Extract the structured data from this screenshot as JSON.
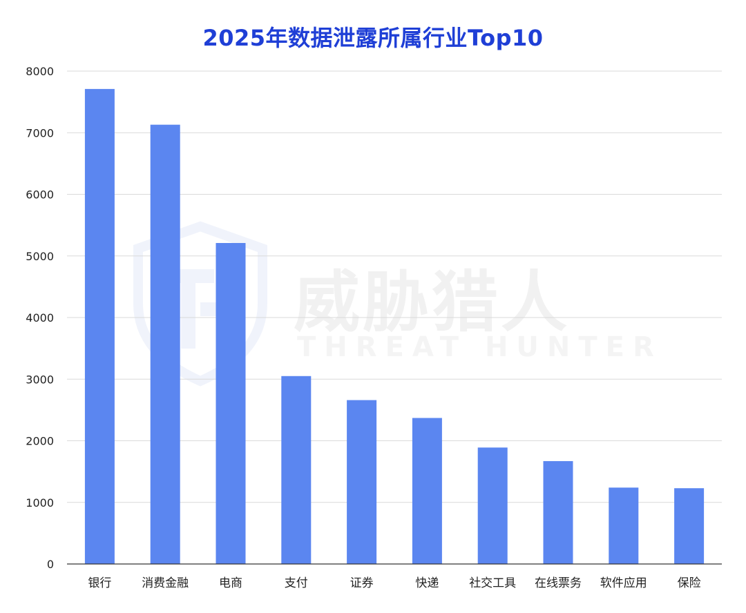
{
  "chart_data": {
    "type": "bar",
    "title": "2025年数据泄露所属行业Top10",
    "xlabel": "",
    "ylabel": "",
    "categories": [
      "银行",
      "消费金融",
      "电商",
      "支付",
      "证券",
      "快递",
      "社交工具",
      "在线票务",
      "软件应用",
      "保险"
    ],
    "values": [
      7710,
      7130,
      5210,
      3050,
      2660,
      2370,
      1890,
      1670,
      1240,
      1230
    ],
    "ylim": [
      0,
      8000
    ],
    "yticks": [
      "0",
      "1000",
      "2000",
      "3000",
      "4000",
      "5000",
      "6000",
      "7000",
      "8000"
    ],
    "grid": true,
    "bar_color": "#5b86f0",
    "title_color": "#1f3fd6"
  },
  "watermark": {
    "text_cn": "威胁猎人",
    "text_en": "THREAT HUNTER",
    "logo": "shield-th-logo"
  }
}
